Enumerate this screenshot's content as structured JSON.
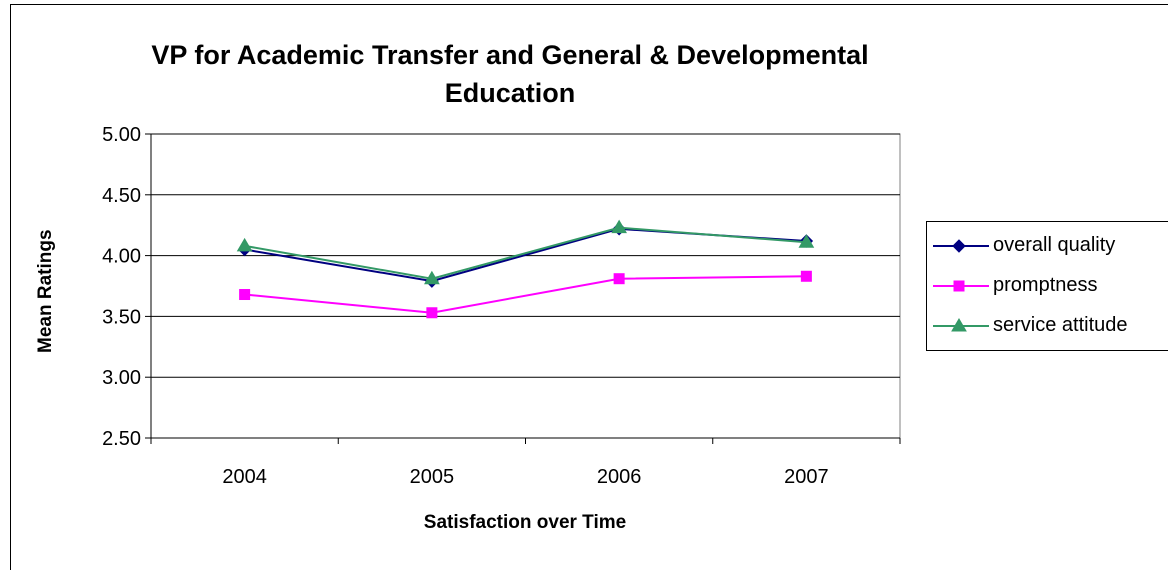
{
  "chart_data": {
    "type": "line",
    "title_line1": "VP for Academic Transfer and General & Developmental",
    "title_line2": "Education",
    "xlabel": "Satisfaction over Time",
    "ylabel": "Mean Ratings",
    "categories": [
      "2004",
      "2005",
      "2006",
      "2007"
    ],
    "ylim": [
      2.5,
      5.0
    ],
    "yticks": [
      "2.50",
      "3.00",
      "3.50",
      "4.00",
      "4.50",
      "5.00"
    ],
    "ytick_values": [
      2.5,
      3.0,
      3.5,
      4.0,
      4.5,
      5.0
    ],
    "grid": true,
    "legend_position": "right",
    "series": [
      {
        "name": "overall quality",
        "values": [
          4.05,
          3.79,
          4.22,
          4.12
        ],
        "color": "#000080",
        "marker": "diamond"
      },
      {
        "name": "promptness",
        "values": [
          3.68,
          3.53,
          3.81,
          3.83
        ],
        "color": "#FF00FF",
        "marker": "square"
      },
      {
        "name": "service attitude",
        "values": [
          4.08,
          3.81,
          4.23,
          4.11
        ],
        "color": "#339966",
        "marker": "triangle"
      }
    ]
  }
}
